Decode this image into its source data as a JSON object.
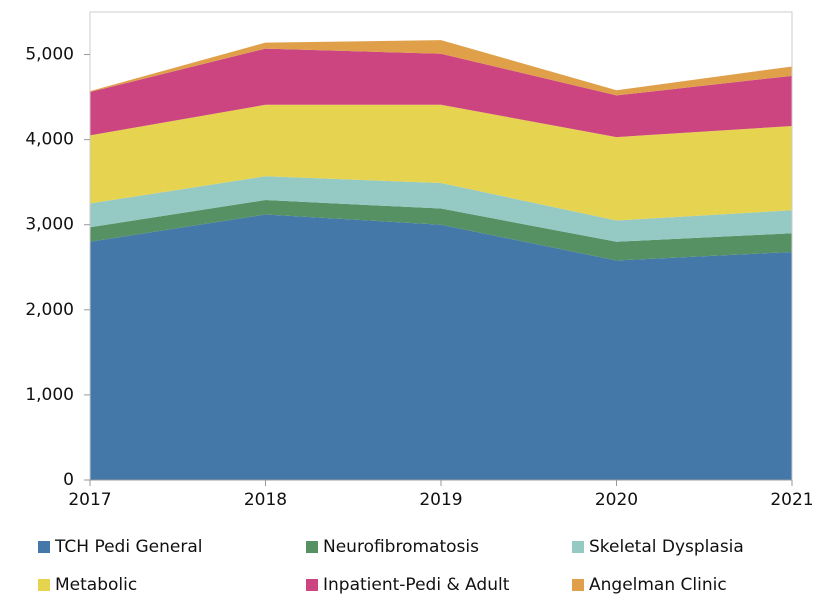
{
  "chart_data": {
    "type": "stacked_area",
    "x": [
      2017,
      2018,
      2019,
      2020,
      2021
    ],
    "xlim": [
      2017,
      2021
    ],
    "xticks": [
      2017,
      2018,
      2019,
      2020,
      2021
    ],
    "ylim": [
      0,
      5500
    ],
    "yticks": [
      0,
      {
        "value": 1000,
        "label": "1,000"
      },
      {
        "value": 2000,
        "label": "2,000"
      },
      {
        "value": 3000,
        "label": "3,000"
      },
      {
        "value": 4000,
        "label": "4,000"
      },
      {
        "value": 5000,
        "label": "5,000"
      }
    ],
    "series": [
      {
        "name": "TCH Pedi General",
        "color": "#4378a8",
        "values": [
          2800,
          3120,
          3000,
          2580,
          2680
        ]
      },
      {
        "name": "Neurofibromatosis",
        "color": "#559163",
        "values": [
          170,
          170,
          190,
          220,
          220
        ]
      },
      {
        "name": "Skeletal Dysplasia",
        "color": "#95c9c4",
        "values": [
          280,
          280,
          300,
          250,
          270
        ]
      },
      {
        "name": "Metabolic",
        "color": "#e6d34f",
        "values": [
          800,
          840,
          920,
          980,
          990
        ]
      },
      {
        "name": "Inpatient-Pedi & Adult",
        "color": "#cc4580",
        "values": [
          510,
          660,
          600,
          490,
          590
        ]
      },
      {
        "name": "Angelman Clinic",
        "color": "#e0a04a",
        "values": [
          10,
          70,
          160,
          60,
          110
        ]
      }
    ]
  }
}
